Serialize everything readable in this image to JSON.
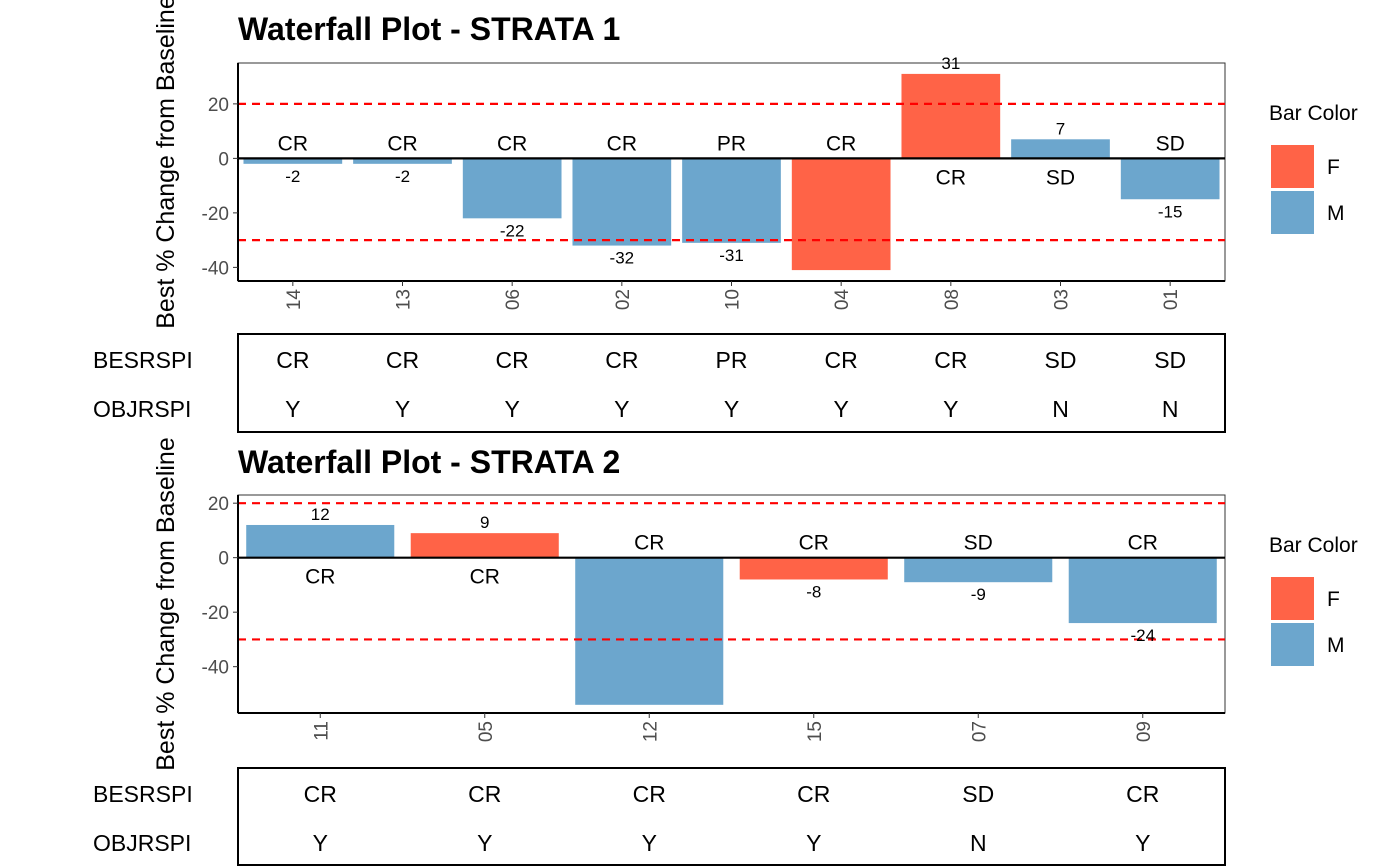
{
  "chart_data": [
    {
      "type": "bar",
      "title": "Waterfall Plot - STRATA 1",
      "ylabel": "Best % Change from Baseline",
      "ylim": [
        -45,
        35
      ],
      "yticks": [
        20,
        0,
        -20,
        -40
      ],
      "reference_lines": [
        20,
        -30
      ],
      "categories": [
        "14",
        "13",
        "06",
        "02",
        "10",
        "04",
        "08",
        "03",
        "01"
      ],
      "values": [
        -2,
        -2,
        -22,
        -32,
        -31,
        -41,
        31,
        7,
        -15
      ],
      "value_labels": [
        "-2",
        "-2",
        "-22",
        "-32",
        "-31",
        "",
        "31",
        "7",
        "-15"
      ],
      "groups": [
        "M",
        "M",
        "M",
        "M",
        "M",
        "F",
        "F",
        "M",
        "M"
      ],
      "response_labels": [
        "CR",
        "CR",
        "CR",
        "CR",
        "PR",
        "CR",
        "CR",
        "SD",
        "SD"
      ],
      "legend": {
        "title": "Bar Color",
        "entries": [
          {
            "label": "F",
            "color": "#FF6347"
          },
          {
            "label": "M",
            "color": "#6CA6CD"
          }
        ]
      },
      "table": {
        "rows": [
          {
            "label": "BESRSPI",
            "values": [
              "CR",
              "CR",
              "CR",
              "CR",
              "PR",
              "CR",
              "CR",
              "SD",
              "SD"
            ]
          },
          {
            "label": "OBJRSPI",
            "values": [
              "Y",
              "Y",
              "Y",
              "Y",
              "Y",
              "Y",
              "Y",
              "N",
              "N"
            ]
          }
        ]
      }
    },
    {
      "type": "bar",
      "title": "Waterfall Plot - STRATA 2",
      "ylabel": "Best % Change from Baseline",
      "ylim": [
        -57,
        23
      ],
      "yticks": [
        20,
        0,
        -20,
        -40
      ],
      "reference_lines": [
        20,
        -30
      ],
      "categories": [
        "11",
        "05",
        "12",
        "15",
        "07",
        "09"
      ],
      "values": [
        12,
        9,
        -54,
        -8,
        -9,
        -24
      ],
      "value_labels": [
        "12",
        "9",
        "",
        "-8",
        "-9",
        "-24"
      ],
      "groups": [
        "M",
        "F",
        "M",
        "F",
        "M",
        "M"
      ],
      "response_labels": [
        "CR",
        "CR",
        "CR",
        "CR",
        "SD",
        "CR"
      ],
      "legend": {
        "title": "Bar Color",
        "entries": [
          {
            "label": "F",
            "color": "#FF6347"
          },
          {
            "label": "M",
            "color": "#6CA6CD"
          }
        ]
      },
      "table": {
        "rows": [
          {
            "label": "BESRSPI",
            "values": [
              "CR",
              "CR",
              "CR",
              "CR",
              "SD",
              "CR"
            ]
          },
          {
            "label": "OBJRSPI",
            "values": [
              "Y",
              "Y",
              "Y",
              "Y",
              "N",
              "Y"
            ]
          }
        ]
      }
    }
  ],
  "colors": {
    "F": "#FF6347",
    "M": "#6CA6CD",
    "reference_line": "#FF0000"
  }
}
